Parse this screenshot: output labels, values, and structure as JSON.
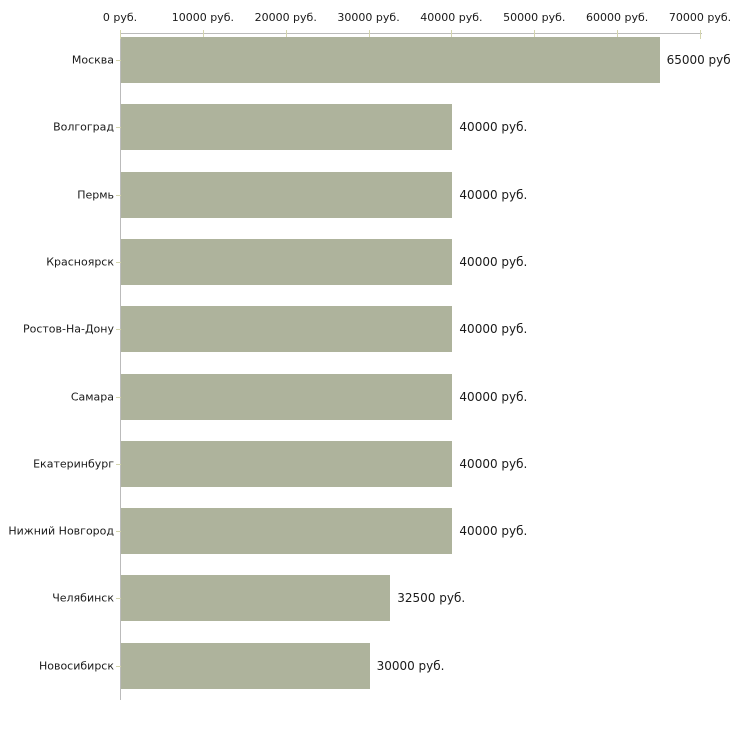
{
  "chart_data": {
    "type": "bar",
    "orientation": "horizontal",
    "title": "",
    "categories": [
      "Москва",
      "Волгоград",
      "Пермь",
      "Красноярск",
      "Ростов-На-Дону",
      "Самара",
      "Екатеринбург",
      "Нижний Новгород",
      "Челябинск",
      "Новосибирск"
    ],
    "values": [
      65000,
      40000,
      40000,
      40000,
      40000,
      40000,
      40000,
      40000,
      32500,
      30000
    ],
    "value_labels": [
      "65000 руб.",
      "40000 руб.",
      "40000 руб.",
      "40000 руб.",
      "40000 руб.",
      "40000 руб.",
      "40000 руб.",
      "40000 руб.",
      "32500 руб.",
      "30000 руб."
    ],
    "unit": "руб.",
    "x_axis": {
      "position": "top",
      "min": 0,
      "max": 70000,
      "ticks": [
        0,
        10000,
        20000,
        30000,
        40000,
        50000,
        60000,
        70000
      ],
      "tick_labels": [
        "0 руб.",
        "10000 руб.",
        "20000 руб.",
        "30000 руб.",
        "40000 руб.",
        "50000 руб.",
        "60000 руб.",
        "70000 руб."
      ]
    },
    "grid": false,
    "legend": false,
    "colors": {
      "bar": "#aeb39c",
      "axis_line": "#bbbbbb",
      "tick_mark": "#d4d5ae",
      "text": "#1a1a1a",
      "background": "#ffffff"
    }
  }
}
